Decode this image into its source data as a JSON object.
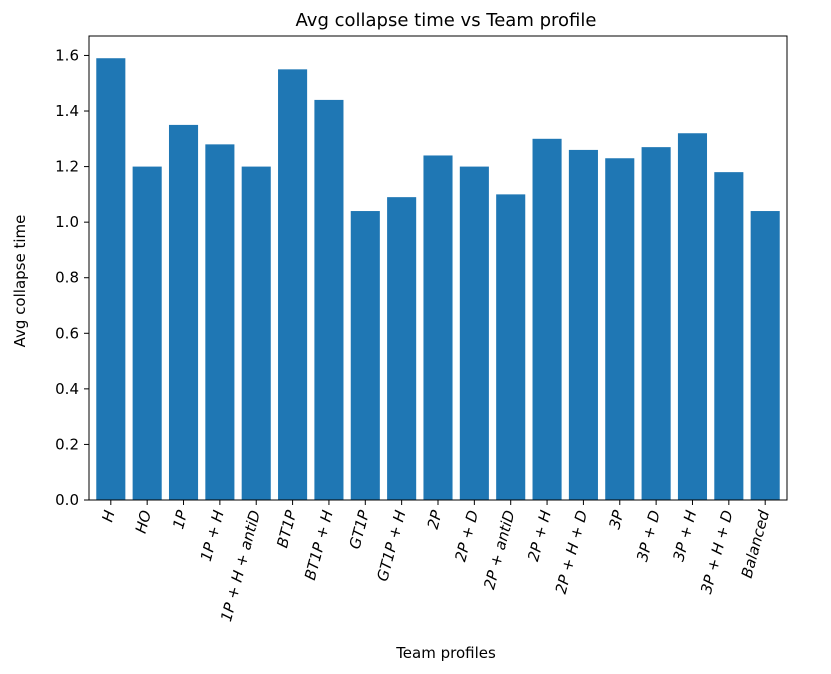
{
  "chart_data": {
    "type": "bar",
    "title": "Avg collapse time vs Team profile",
    "xlabel": "Team profiles",
    "ylabel": "Avg collapse time",
    "categories": [
      "H",
      "HO",
      "1P",
      "1P + H",
      "1P + H + antiD",
      "BT1P",
      "BT1P + H",
      "GT1P",
      "GT1P + H",
      "2P",
      "2P + D",
      "2P + antiD",
      "2P + H",
      "2P + H + D",
      "3P",
      "3P + D",
      "3P + H",
      "3P + H + D",
      "Balanced"
    ],
    "values": [
      1.59,
      1.2,
      1.35,
      1.28,
      1.2,
      1.55,
      1.44,
      1.04,
      1.09,
      1.24,
      1.2,
      1.1,
      1.3,
      1.26,
      1.23,
      1.27,
      1.32,
      1.18,
      1.04
    ],
    "ylim": [
      0,
      1.67
    ],
    "yticks": [
      "0.0",
      "0.2",
      "0.4",
      "0.6",
      "0.8",
      "1.0",
      "1.2",
      "1.4",
      "1.6"
    ],
    "ytick_values": [
      0,
      0.2,
      0.4,
      0.6,
      0.8,
      1.0,
      1.2,
      1.4,
      1.6
    ],
    "bar_color": "#1f77b4",
    "grid": false,
    "legend": false,
    "xtick_rotation": "italic, rotated ~75°"
  }
}
